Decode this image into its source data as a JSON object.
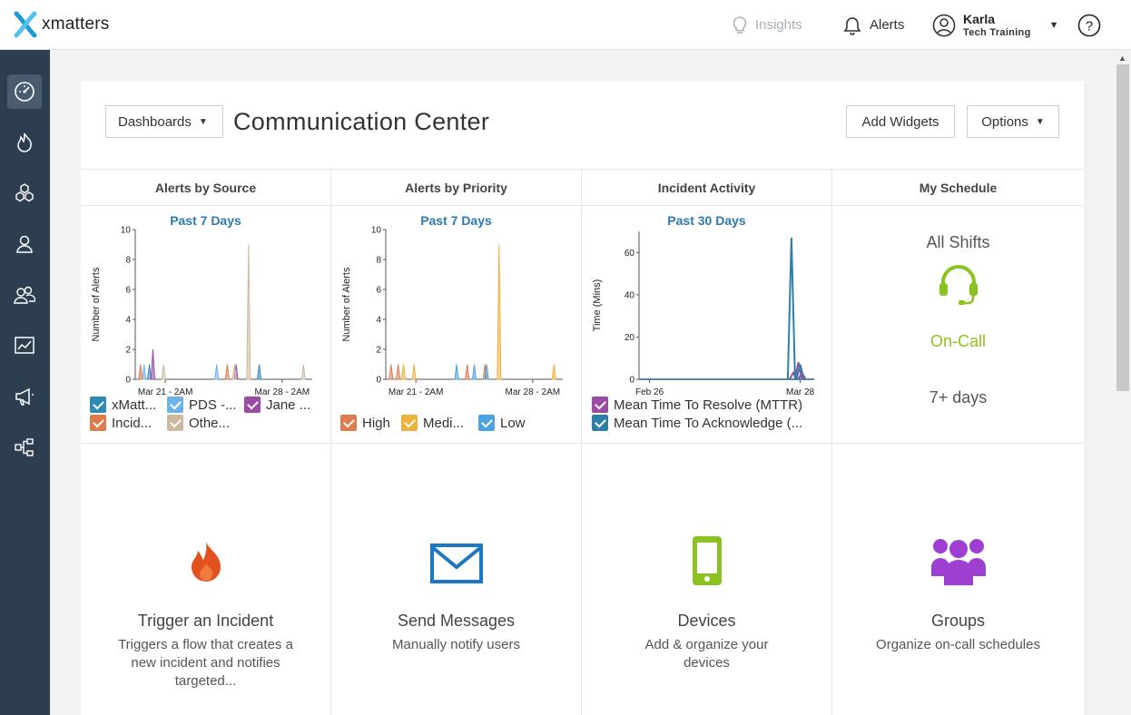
{
  "app": {
    "logo_text": "xmatters"
  },
  "topbar": {
    "insights_label": "Insights",
    "alerts_label": "Alerts",
    "user_name": "Karla",
    "user_org": "Tech Training"
  },
  "sidebar": {
    "items": [
      {
        "name": "dashboard",
        "icon": "speedometer-icon"
      },
      {
        "name": "incidents",
        "icon": "flame-icon"
      },
      {
        "name": "workflows",
        "icon": "hexagons-icon"
      },
      {
        "name": "users",
        "icon": "user-icon"
      },
      {
        "name": "groups",
        "icon": "group-icon"
      },
      {
        "name": "reports",
        "icon": "chart-icon"
      },
      {
        "name": "messages",
        "icon": "megaphone-icon"
      },
      {
        "name": "flows",
        "icon": "hierarchy-icon"
      }
    ]
  },
  "header": {
    "dashboards_label": "Dashboards",
    "title": "Communication Center",
    "add_widgets_label": "Add Widgets",
    "options_label": "Options"
  },
  "widgets": {
    "alerts_by_source": {
      "title": "Alerts by Source",
      "period": "Past 7 Days",
      "legend": [
        {
          "label": "xMatt...",
          "color": "#2e8bb7"
        },
        {
          "label": "PDS -...",
          "color": "#6fb4e8"
        },
        {
          "label": "Jane ...",
          "color": "#9b4aa6"
        },
        {
          "label": "Incid...",
          "color": "#e07a4a"
        },
        {
          "label": "Othe...",
          "color": "#cbb9a0"
        }
      ]
    },
    "alerts_by_priority": {
      "title": "Alerts by Priority",
      "period": "Past 7 Days",
      "legend": [
        {
          "label": "High",
          "color": "#e07a4a"
        },
        {
          "label": "Medi...",
          "color": "#f0b03c"
        },
        {
          "label": "Low",
          "color": "#4aa3e0"
        }
      ]
    },
    "incident_activity": {
      "title": "Incident Activity",
      "period": "Past 30 Days",
      "legend": [
        {
          "label": "Mean Time To Resolve (MTTR)",
          "color": "#9b4aa6"
        },
        {
          "label": "Mean Time To Acknowledge (...",
          "color": "#2e7fa8"
        }
      ]
    },
    "my_schedule": {
      "title": "My Schedule",
      "shifts": "All Shifts",
      "status": "On-Call",
      "duration": "7+ days",
      "status_color": "#8cc21f"
    }
  },
  "tiles": [
    {
      "title": "Trigger an Incident",
      "desc": "Triggers a flow that creates a new incident and notifies targeted...",
      "icon": "flame-icon",
      "color": "#e2521f"
    },
    {
      "title": "Send Messages",
      "desc": "Manually notify users",
      "icon": "envelope-icon",
      "color": "#1d78c1"
    },
    {
      "title": "Devices",
      "desc": "Add & organize your devices",
      "icon": "phone-icon",
      "color": "#8cc21f"
    },
    {
      "title": "Groups",
      "desc": "Organize on-call schedules",
      "icon": "group-icon",
      "color": "#9d3fd0"
    }
  ],
  "chart_data": [
    {
      "type": "area",
      "title": "Alerts by Source",
      "subtitle": "Past 7 Days",
      "ylabel": "Number of Alerts",
      "ylim": [
        0,
        10
      ],
      "yticks": [
        "0",
        "2",
        "4",
        "6",
        "8",
        "10"
      ],
      "xticks": [
        "Mar 21 - 2AM",
        "Mar 28 - 2AM"
      ],
      "series": [
        {
          "name": "xMatt...",
          "color": "#2e8bb7",
          "spikes": [
            [
              0.08,
              1
            ],
            [
              0.7,
              1
            ]
          ]
        },
        {
          "name": "PDS -...",
          "color": "#6fb4e8",
          "spikes": [
            [
              0.05,
              1
            ],
            [
              0.46,
              1
            ]
          ]
        },
        {
          "name": "Jane ...",
          "color": "#9b4aa6",
          "spikes": [
            [
              0.1,
              2
            ],
            [
              0.57,
              1
            ]
          ]
        },
        {
          "name": "Incid...",
          "color": "#e07a4a",
          "spikes": [
            [
              0.03,
              1
            ],
            [
              0.52,
              1
            ]
          ]
        },
        {
          "name": "Othe...",
          "color": "#cbb9a0",
          "spikes": [
            [
              0.16,
              1
            ],
            [
              0.56,
              1
            ],
            [
              0.64,
              9
            ],
            [
              0.95,
              1
            ]
          ]
        }
      ]
    },
    {
      "type": "area",
      "title": "Alerts by Priority",
      "subtitle": "Past 7 Days",
      "ylabel": "Number of Alerts",
      "ylim": [
        0,
        10
      ],
      "yticks": [
        "0",
        "2",
        "4",
        "6",
        "8",
        "10"
      ],
      "xticks": [
        "Mar 21 - 2AM",
        "Mar 28 - 2AM"
      ],
      "series": [
        {
          "name": "High",
          "color": "#e07a4a",
          "spikes": [
            [
              0.03,
              1
            ],
            [
              0.07,
              1
            ],
            [
              0.46,
              1
            ],
            [
              0.56,
              1
            ]
          ]
        },
        {
          "name": "Medi...",
          "color": "#f0b03c",
          "spikes": [
            [
              0.1,
              1
            ],
            [
              0.16,
              1
            ],
            [
              0.64,
              9
            ],
            [
              0.95,
              1
            ]
          ]
        },
        {
          "name": "Low",
          "color": "#4aa3e0",
          "spikes": [
            [
              0.4,
              1
            ],
            [
              0.5,
              1
            ],
            [
              0.57,
              1
            ]
          ]
        }
      ]
    },
    {
      "type": "line",
      "title": "Incident Activity",
      "subtitle": "Past 30 Days",
      "ylabel": "Time (Mins)",
      "ylim": [
        0,
        70
      ],
      "yticks": [
        "0",
        "20",
        "40",
        "60"
      ],
      "xticks": [
        "Feb 26",
        "Mar 28"
      ],
      "series": [
        {
          "name": "Mean Time To Resolve (MTTR)",
          "color": "#9b4aa6",
          "spikes": [
            [
              0.88,
              3
            ],
            [
              0.91,
              8
            ],
            [
              0.93,
              3
            ]
          ]
        },
        {
          "name": "Mean Time To Acknowledge (...",
          "color": "#2e7fa8",
          "spikes": [
            [
              0.87,
              67
            ],
            [
              0.92,
              7
            ]
          ]
        }
      ]
    }
  ]
}
